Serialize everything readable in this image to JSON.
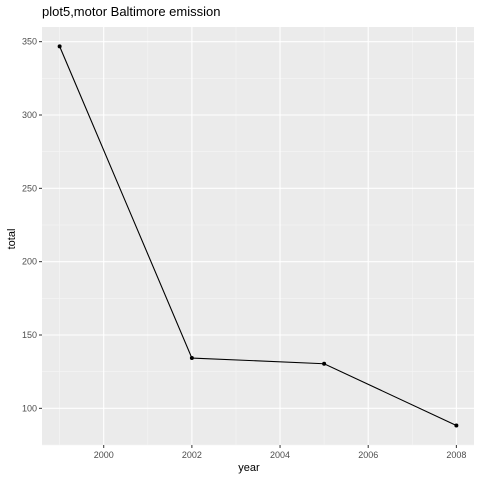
{
  "chart_data": {
    "type": "line",
    "title": "plot5,motor Baltimore emission",
    "xlabel": "year",
    "ylabel": "total",
    "x": [
      1999,
      2002,
      2005,
      2008
    ],
    "series": [
      {
        "values": [
          346.8,
          134.3,
          130.4,
          88.3
        ]
      }
    ],
    "xlim": [
      1998.6,
      2008.4
    ],
    "ylim": [
      75,
      360
    ],
    "x_ticks": [
      2000,
      2002,
      2004,
      2006,
      2008
    ],
    "x_tick_labels": [
      "2000",
      "2002",
      "2004",
      "2006",
      "2008"
    ],
    "y_ticks": [
      100,
      150,
      200,
      250,
      300,
      350
    ],
    "y_tick_labels": [
      "100",
      "150",
      "200",
      "250",
      "300",
      "350"
    ],
    "grid": true,
    "theme": "ggplot2-gray",
    "colors": {
      "panel_background": "#ebebeb",
      "grid_major": "#ffffff",
      "grid_minor": "#f5f5f5",
      "line": "#000000",
      "point": "#000000",
      "tick_label": "#4d4d4d",
      "axis_tick": "#333333"
    }
  }
}
